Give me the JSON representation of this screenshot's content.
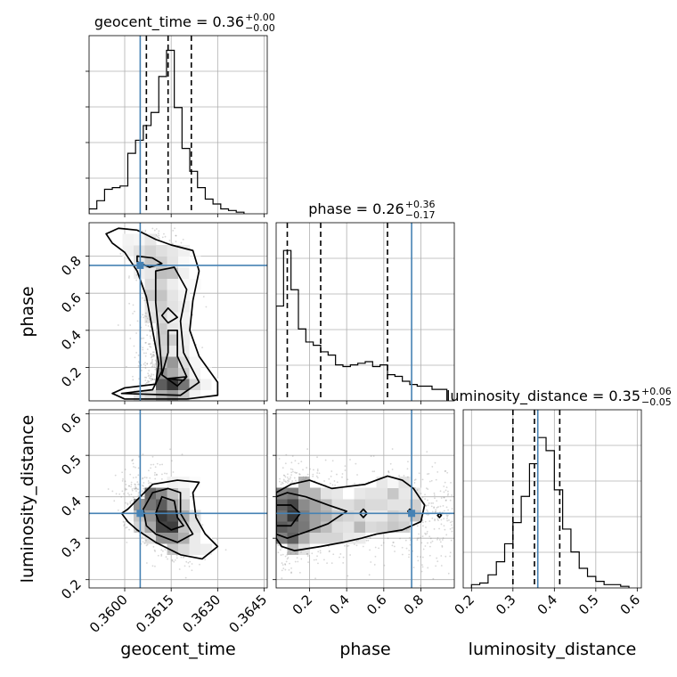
{
  "colors": {
    "truth": "#4682b4",
    "grid": "#b0b0b0",
    "ink": "#000000",
    "samples": "#8c8c8c"
  },
  "chart_data": {
    "type": "corner",
    "grid": true,
    "parameters": [
      "geocent_time",
      "phase",
      "luminosity_distance"
    ],
    "truths": {
      "geocent_time": 0.3605,
      "phase": 0.75,
      "luminosity_distance": 0.36
    },
    "titles": [
      {
        "param": "geocent_time",
        "text": "geocent_time = 0.36",
        "plus": "+0.00",
        "minus": "−0.00"
      },
      {
        "param": "phase",
        "text": "phase = 0.26",
        "plus": "+0.36",
        "minus": "−0.17"
      },
      {
        "param": "luminosity_distance",
        "text": "luminosity_distance = 0.35",
        "plus": "+0.06",
        "minus": "−0.05"
      }
    ],
    "axes": {
      "geocent_time": {
        "label": "geocent_time",
        "range": [
          0.35885,
          0.3646
        ],
        "ticks": [
          0.36,
          0.3615,
          0.363,
          0.3645
        ],
        "tick_labels": [
          "0.3600",
          "0.3615",
          "0.3630",
          "0.3645"
        ]
      },
      "phase": {
        "label": "phase",
        "range": [
          0.02,
          0.98
        ],
        "ticks": [
          0.2,
          0.4,
          0.6,
          0.8
        ],
        "tick_labels": [
          "0.2",
          "0.4",
          "0.6",
          "0.8"
        ]
      },
      "luminosity_distance": {
        "label": "luminosity_distance",
        "range": [
          0.18,
          0.61
        ],
        "ticks": [
          0.2,
          0.3,
          0.4,
          0.5,
          0.6
        ],
        "tick_labels": [
          "0.2",
          "0.3",
          "0.4",
          "0.5",
          "0.6"
        ]
      }
    },
    "histograms": {
      "geocent_time": {
        "edges": [
          0.35885,
          0.3591,
          0.35935,
          0.3596,
          0.35985,
          0.3601,
          0.36035,
          0.3606,
          0.36085,
          0.3611,
          0.36135,
          0.3616,
          0.36185,
          0.3621,
          0.36235,
          0.3626,
          0.36285,
          0.3631,
          0.36335,
          0.3636,
          0.36385
        ],
        "counts": [
          3,
          8,
          15,
          16,
          17,
          37,
          45,
          54,
          62,
          84,
          100,
          65,
          40,
          26,
          16,
          9,
          6,
          3,
          2,
          1
        ],
        "quantiles": [
          0.3607,
          0.3614,
          0.36215
        ],
        "ymax": 100
      },
      "phase": {
        "edges": [
          0.02,
          0.06,
          0.1,
          0.14,
          0.18,
          0.22,
          0.26,
          0.3,
          0.34,
          0.38,
          0.42,
          0.46,
          0.5,
          0.54,
          0.58,
          0.62,
          0.66,
          0.7,
          0.74,
          0.78,
          0.82,
          0.86,
          0.9,
          0.94
        ],
        "counts": [
          58,
          92,
          68,
          44,
          36,
          34,
          30,
          28,
          22,
          21,
          22,
          23,
          24,
          21,
          22,
          16,
          15,
          12,
          10,
          9,
          9,
          7,
          7
        ],
        "quantiles": [
          0.08,
          0.26,
          0.62
        ],
        "ymax": 100
      },
      "luminosity_distance": {
        "edges": [
          0.2,
          0.22,
          0.24,
          0.26,
          0.28,
          0.3,
          0.32,
          0.34,
          0.36,
          0.38,
          0.4,
          0.42,
          0.44,
          0.46,
          0.48,
          0.5,
          0.52,
          0.54,
          0.56,
          0.58
        ],
        "counts": [
          2,
          3,
          8,
          16,
          27,
          40,
          56,
          76,
          92,
          84,
          60,
          36,
          22,
          12,
          7,
          4,
          2,
          2,
          1
        ],
        "quantiles": [
          0.3,
          0.352,
          0.413
        ],
        "ymax": 100
      }
    },
    "scatter_samples": {
      "phase_vs_geocent_time": 1100,
      "luminosity_distance_vs_geocent_time": 1000,
      "luminosity_distance_vs_phase": 1300
    },
    "contours": {
      "phase_vs_geocent_time": [
        [
          [
            0.3594,
            0.92
          ],
          [
            0.3598,
            0.95
          ],
          [
            0.3604,
            0.94
          ],
          [
            0.361,
            0.89
          ],
          [
            0.3615,
            0.86
          ],
          [
            0.3622,
            0.83
          ],
          [
            0.3624,
            0.72
          ],
          [
            0.3622,
            0.56
          ],
          [
            0.3621,
            0.4
          ],
          [
            0.3624,
            0.26
          ],
          [
            0.363,
            0.12
          ],
          [
            0.363,
            0.05
          ],
          [
            0.362,
            0.03
          ],
          [
            0.36,
            0.03
          ],
          [
            0.3596,
            0.06
          ],
          [
            0.36,
            0.09
          ],
          [
            0.361,
            0.11
          ],
          [
            0.3611,
            0.22
          ],
          [
            0.3609,
            0.4
          ],
          [
            0.3607,
            0.58
          ],
          [
            0.3604,
            0.72
          ],
          [
            0.36,
            0.82
          ],
          [
            0.3596,
            0.87
          ],
          [
            0.3594,
            0.92
          ]
        ],
        [
          [
            0.3599,
            0.06
          ],
          [
            0.3609,
            0.08
          ],
          [
            0.3612,
            0.18
          ],
          [
            0.3611,
            0.38
          ],
          [
            0.361,
            0.55
          ],
          [
            0.361,
            0.72
          ],
          [
            0.3616,
            0.74
          ],
          [
            0.362,
            0.62
          ],
          [
            0.3618,
            0.45
          ],
          [
            0.3619,
            0.28
          ],
          [
            0.3624,
            0.12
          ],
          [
            0.3618,
            0.05
          ],
          [
            0.3599,
            0.06
          ]
        ],
        [
          [
            0.3604,
            0.8
          ],
          [
            0.3609,
            0.79
          ],
          [
            0.3612,
            0.76
          ],
          [
            0.3608,
            0.74
          ],
          [
            0.3604,
            0.77
          ],
          [
            0.3604,
            0.8
          ]
        ],
        [
          [
            0.3612,
            0.16
          ],
          [
            0.3614,
            0.28
          ],
          [
            0.3614,
            0.4
          ],
          [
            0.3617,
            0.4
          ],
          [
            0.3617,
            0.26
          ],
          [
            0.362,
            0.15
          ],
          [
            0.3617,
            0.1
          ],
          [
            0.3612,
            0.16
          ]
        ],
        [
          [
            0.3612,
            0.48
          ],
          [
            0.3614,
            0.52
          ],
          [
            0.3617,
            0.47
          ],
          [
            0.3614,
            0.44
          ],
          [
            0.3612,
            0.48
          ]
        ],
        [
          [
            0.3614,
            0.14
          ],
          [
            0.362,
            0.15
          ],
          [
            0.3619,
            0.13
          ],
          [
            0.3614,
            0.14
          ]
        ]
      ],
      "luminosity_distance_vs_geocent_time": [
        [
          [
            0.3601,
            0.37
          ],
          [
            0.3605,
            0.4
          ],
          [
            0.3609,
            0.43
          ],
          [
            0.3617,
            0.44
          ],
          [
            0.3624,
            0.435
          ],
          [
            0.3622,
            0.41
          ],
          [
            0.3623,
            0.35
          ],
          [
            0.3626,
            0.31
          ],
          [
            0.363,
            0.28
          ],
          [
            0.3625,
            0.25
          ],
          [
            0.3618,
            0.26
          ],
          [
            0.361,
            0.29
          ],
          [
            0.3604,
            0.32
          ],
          [
            0.3601,
            0.34
          ],
          [
            0.3599,
            0.36
          ],
          [
            0.3601,
            0.37
          ]
        ],
        [
          [
            0.3606,
            0.37
          ],
          [
            0.3609,
            0.41
          ],
          [
            0.3614,
            0.42
          ],
          [
            0.3618,
            0.41
          ],
          [
            0.3618,
            0.36
          ],
          [
            0.3622,
            0.31
          ],
          [
            0.3617,
            0.29
          ],
          [
            0.361,
            0.31
          ],
          [
            0.3607,
            0.33
          ],
          [
            0.3606,
            0.37
          ]
        ],
        [
          [
            0.361,
            0.36
          ],
          [
            0.3612,
            0.4
          ],
          [
            0.3616,
            0.39
          ],
          [
            0.3617,
            0.35
          ],
          [
            0.3619,
            0.33
          ],
          [
            0.3615,
            0.32
          ],
          [
            0.3611,
            0.34
          ],
          [
            0.361,
            0.36
          ]
        ]
      ],
      "luminosity_distance_vs_phase": [
        [
          [
            0.02,
            0.41
          ],
          [
            0.1,
            0.43
          ],
          [
            0.2,
            0.44
          ],
          [
            0.32,
            0.42
          ],
          [
            0.5,
            0.43
          ],
          [
            0.62,
            0.45
          ],
          [
            0.7,
            0.44
          ],
          [
            0.76,
            0.42
          ],
          [
            0.82,
            0.38
          ],
          [
            0.8,
            0.34
          ],
          [
            0.7,
            0.32
          ],
          [
            0.56,
            0.31
          ],
          [
            0.48,
            0.3
          ],
          [
            0.38,
            0.29
          ],
          [
            0.26,
            0.28
          ],
          [
            0.12,
            0.27
          ],
          [
            0.05,
            0.28
          ],
          [
            0.02,
            0.3
          ]
        ],
        [
          [
            0.02,
            0.4
          ],
          [
            0.08,
            0.41
          ],
          [
            0.18,
            0.4
          ],
          [
            0.3,
            0.38
          ],
          [
            0.4,
            0.365
          ],
          [
            0.3,
            0.335
          ],
          [
            0.18,
            0.315
          ],
          [
            0.08,
            0.3
          ],
          [
            0.02,
            0.31
          ]
        ],
        [
          [
            0.02,
            0.38
          ],
          [
            0.1,
            0.38
          ],
          [
            0.15,
            0.36
          ],
          [
            0.1,
            0.33
          ],
          [
            0.02,
            0.33
          ]
        ],
        [
          [
            0.47,
            0.36
          ],
          [
            0.49,
            0.37
          ],
          [
            0.51,
            0.36
          ],
          [
            0.49,
            0.35
          ],
          [
            0.47,
            0.36
          ]
        ],
        [
          [
            0.73,
            0.365
          ],
          [
            0.74,
            0.37
          ],
          [
            0.75,
            0.365
          ],
          [
            0.74,
            0.36
          ],
          [
            0.73,
            0.365
          ]
        ],
        [
          [
            0.89,
            0.355
          ],
          [
            0.9,
            0.36
          ],
          [
            0.91,
            0.355
          ],
          [
            0.9,
            0.35
          ],
          [
            0.89,
            0.355
          ]
        ]
      ]
    }
  }
}
